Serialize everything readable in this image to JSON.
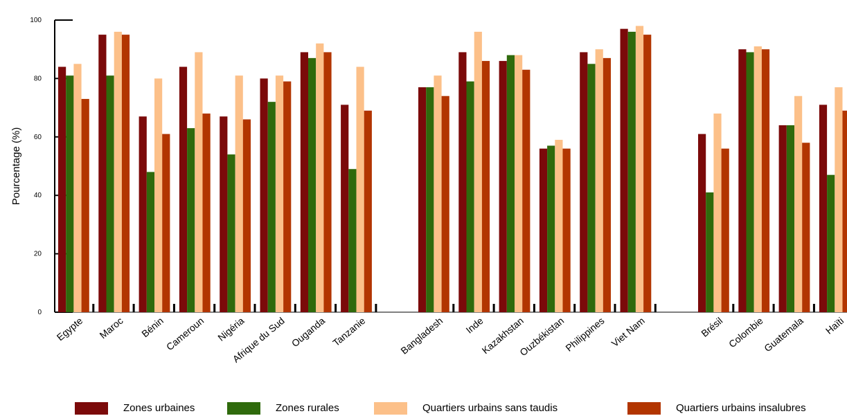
{
  "chart_data": {
    "type": "bar",
    "ylabel": "Pourcentage (%)",
    "ylim": [
      0,
      100
    ],
    "yticks": [
      0,
      20,
      40,
      60,
      80,
      100
    ],
    "grid": false,
    "legend_position": "bottom",
    "groups": [
      {
        "categories": [
          "Egypte",
          "Maroc",
          "Bénin",
          "Cameroun",
          "Nigéria",
          "Afrique du Sud",
          "Ouganda",
          "Tanzanie"
        ]
      },
      {
        "categories": [
          "Bangladesh",
          "Inde",
          "Kazakhstan",
          "Ouzbékistan",
          "Philippines",
          "Viet Nam"
        ]
      },
      {
        "categories": [
          "Brésil",
          "Colombie",
          "Guatemala",
          "Haïti"
        ]
      }
    ],
    "categories": [
      "Egypte",
      "Maroc",
      "Bénin",
      "Cameroun",
      "Nigéria",
      "Afrique du Sud",
      "Ouganda",
      "Tanzanie",
      "Bangladesh",
      "Inde",
      "Kazakhstan",
      "Ouzbékistan",
      "Philippines",
      "Viet Nam",
      "Brésil",
      "Colombie",
      "Guatemala",
      "Haïti"
    ],
    "series": [
      {
        "name": "Zones urbaines",
        "color": "#7b0a0a",
        "values": [
          84,
          95,
          67,
          84,
          67,
          80,
          89,
          71,
          77,
          89,
          86,
          56,
          89,
          97,
          61,
          90,
          64,
          71
        ]
      },
      {
        "name": "Zones rurales",
        "color": "#2f6a0c",
        "values": [
          81,
          81,
          48,
          63,
          54,
          72,
          87,
          49,
          77,
          79,
          88,
          57,
          85,
          96,
          41,
          89,
          64,
          47
        ]
      },
      {
        "name": "Quartiers urbains sans taudis",
        "color": "#fcc089",
        "values": [
          85,
          96,
          80,
          89,
          81,
          81,
          92,
          84,
          81,
          96,
          88,
          59,
          90,
          98,
          68,
          91,
          74,
          77
        ]
      },
      {
        "name": "Quartiers urbains insalubres",
        "color": "#b23500",
        "values": [
          73,
          95,
          61,
          68,
          66,
          79,
          89,
          69,
          74,
          86,
          83,
          56,
          87,
          95,
          56,
          90,
          58,
          69
        ]
      }
    ]
  }
}
